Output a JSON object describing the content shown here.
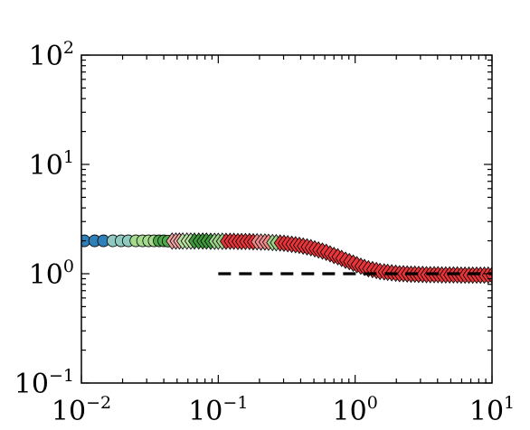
{
  "chart_data": {
    "type": "scatter",
    "title": "",
    "xlabel": "",
    "ylabel": "",
    "xscale": "log",
    "yscale": "log",
    "xlim": [
      0.01,
      10
    ],
    "ylim": [
      0.1,
      100
    ],
    "x_ticks": [
      {
        "value": 0.01,
        "base": "10",
        "exp": "−2"
      },
      {
        "value": 0.1,
        "base": "10",
        "exp": "−1"
      },
      {
        "value": 1,
        "base": "10",
        "exp": "0"
      },
      {
        "value": 10,
        "base": "10",
        "exp": "1"
      }
    ],
    "y_ticks": [
      {
        "value": 0.1,
        "base": "10",
        "exp": "−1"
      },
      {
        "value": 1,
        "base": "10",
        "exp": "0"
      },
      {
        "value": 10,
        "base": "10",
        "exp": "1"
      },
      {
        "value": 100,
        "base": "10",
        "exp": "2"
      }
    ],
    "grid": false,
    "legend": "none",
    "series": [
      {
        "marker": "circle",
        "color": "#2f7fb8",
        "points": [
          [
            0.0105,
            2.0
          ],
          [
            0.0125,
            2.0
          ],
          [
            0.0145,
            2.0
          ]
        ]
      },
      {
        "marker": "circle",
        "color": "#8fc9c0",
        "points": [
          [
            0.017,
            2.0
          ],
          [
            0.0195,
            2.0
          ],
          [
            0.022,
            2.0
          ]
        ]
      },
      {
        "marker": "circle",
        "color": "#a6db8f",
        "points": [
          [
            0.025,
            2.0
          ],
          [
            0.028,
            2.0
          ],
          [
            0.031,
            2.0
          ],
          [
            0.034,
            2.0
          ]
        ]
      },
      {
        "marker": "circle",
        "color": "#4fa84a",
        "points": [
          [
            0.037,
            2.0
          ],
          [
            0.04,
            2.0
          ],
          [
            0.043,
            1.99
          ]
        ]
      },
      {
        "marker": "diamond",
        "color": "#f0a3a3",
        "points": [
          [
            0.046,
            1.99
          ],
          [
            0.049,
            1.99
          ],
          [
            0.052,
            1.99
          ]
        ]
      },
      {
        "marker": "diamond",
        "color": "#b8e0a0",
        "points": [
          [
            0.055,
            1.99
          ],
          [
            0.059,
            1.99
          ],
          [
            0.063,
            1.99
          ]
        ]
      },
      {
        "marker": "diamond",
        "color": "#3f9a3c",
        "points": [
          [
            0.067,
            1.99
          ],
          [
            0.072,
            1.99
          ],
          [
            0.077,
            1.99
          ],
          [
            0.082,
            1.99
          ],
          [
            0.088,
            1.98
          ]
        ]
      },
      {
        "marker": "diamond",
        "color": "#9ed28a",
        "points": [
          [
            0.094,
            1.98
          ],
          [
            0.1,
            1.98
          ],
          [
            0.107,
            1.98
          ]
        ]
      },
      {
        "marker": "diamond",
        "color": "#e8353a",
        "points": [
          [
            0.114,
            1.98
          ],
          [
            0.122,
            1.98
          ],
          [
            0.13,
            1.98
          ],
          [
            0.139,
            1.97
          ],
          [
            0.148,
            1.97
          ],
          [
            0.158,
            1.97
          ],
          [
            0.169,
            1.97
          ],
          [
            0.18,
            1.96
          ]
        ]
      },
      {
        "marker": "diamond",
        "color": "#f08a8a",
        "points": [
          [
            0.192,
            1.96
          ],
          [
            0.205,
            1.95
          ],
          [
            0.219,
            1.95
          ],
          [
            0.233,
            1.94
          ]
        ]
      },
      {
        "marker": "diamond",
        "color": "#9ed28a",
        "points": [
          [
            0.249,
            1.93
          ],
          [
            0.265,
            1.92
          ]
        ]
      },
      {
        "marker": "diamond",
        "color": "#e8353a",
        "points": [
          [
            0.283,
            1.91
          ],
          [
            0.302,
            1.9
          ],
          [
            0.322,
            1.88
          ],
          [
            0.344,
            1.86
          ],
          [
            0.367,
            1.84
          ],
          [
            0.391,
            1.82
          ],
          [
            0.417,
            1.79
          ],
          [
            0.445,
            1.76
          ],
          [
            0.475,
            1.73
          ],
          [
            0.507,
            1.69
          ],
          [
            0.54,
            1.65
          ],
          [
            0.577,
            1.61
          ],
          [
            0.615,
            1.57
          ],
          [
            0.656,
            1.52
          ],
          [
            0.7,
            1.47
          ],
          [
            0.747,
            1.43
          ],
          [
            0.797,
            1.38
          ],
          [
            0.85,
            1.33
          ],
          [
            0.907,
            1.29
          ],
          [
            0.968,
            1.25
          ],
          [
            1.03,
            1.21
          ],
          [
            1.1,
            1.17
          ],
          [
            1.17,
            1.14
          ],
          [
            1.25,
            1.11
          ],
          [
            1.34,
            1.09
          ],
          [
            1.43,
            1.07
          ],
          [
            1.52,
            1.05
          ],
          [
            1.63,
            1.04
          ],
          [
            1.73,
            1.03
          ],
          [
            1.85,
            1.02
          ],
          [
            1.98,
            1.01
          ],
          [
            2.11,
            1.0
          ],
          [
            2.25,
            1.0
          ],
          [
            2.4,
            0.995
          ],
          [
            2.56,
            0.99
          ],
          [
            2.73,
            0.99
          ],
          [
            2.91,
            0.985
          ],
          [
            3.11,
            0.985
          ],
          [
            3.32,
            0.98
          ],
          [
            3.54,
            0.98
          ],
          [
            3.78,
            0.98
          ],
          [
            4.03,
            0.98
          ],
          [
            4.3,
            0.975
          ],
          [
            4.59,
            0.975
          ],
          [
            4.9,
            0.975
          ],
          [
            5.23,
            0.975
          ],
          [
            5.58,
            0.975
          ],
          [
            5.95,
            0.97
          ],
          [
            6.35,
            0.97
          ],
          [
            6.78,
            0.97
          ],
          [
            7.23,
            0.97
          ],
          [
            7.72,
            0.97
          ],
          [
            8.23,
            0.97
          ],
          [
            8.79,
            0.97
          ],
          [
            9.38,
            0.97
          ],
          [
            10.0,
            0.97
          ]
        ]
      }
    ],
    "reference_line": {
      "style": "dashed",
      "color": "#000000",
      "x": [
        0.1,
        10
      ],
      "y": [
        1.0,
        1.0
      ]
    }
  }
}
